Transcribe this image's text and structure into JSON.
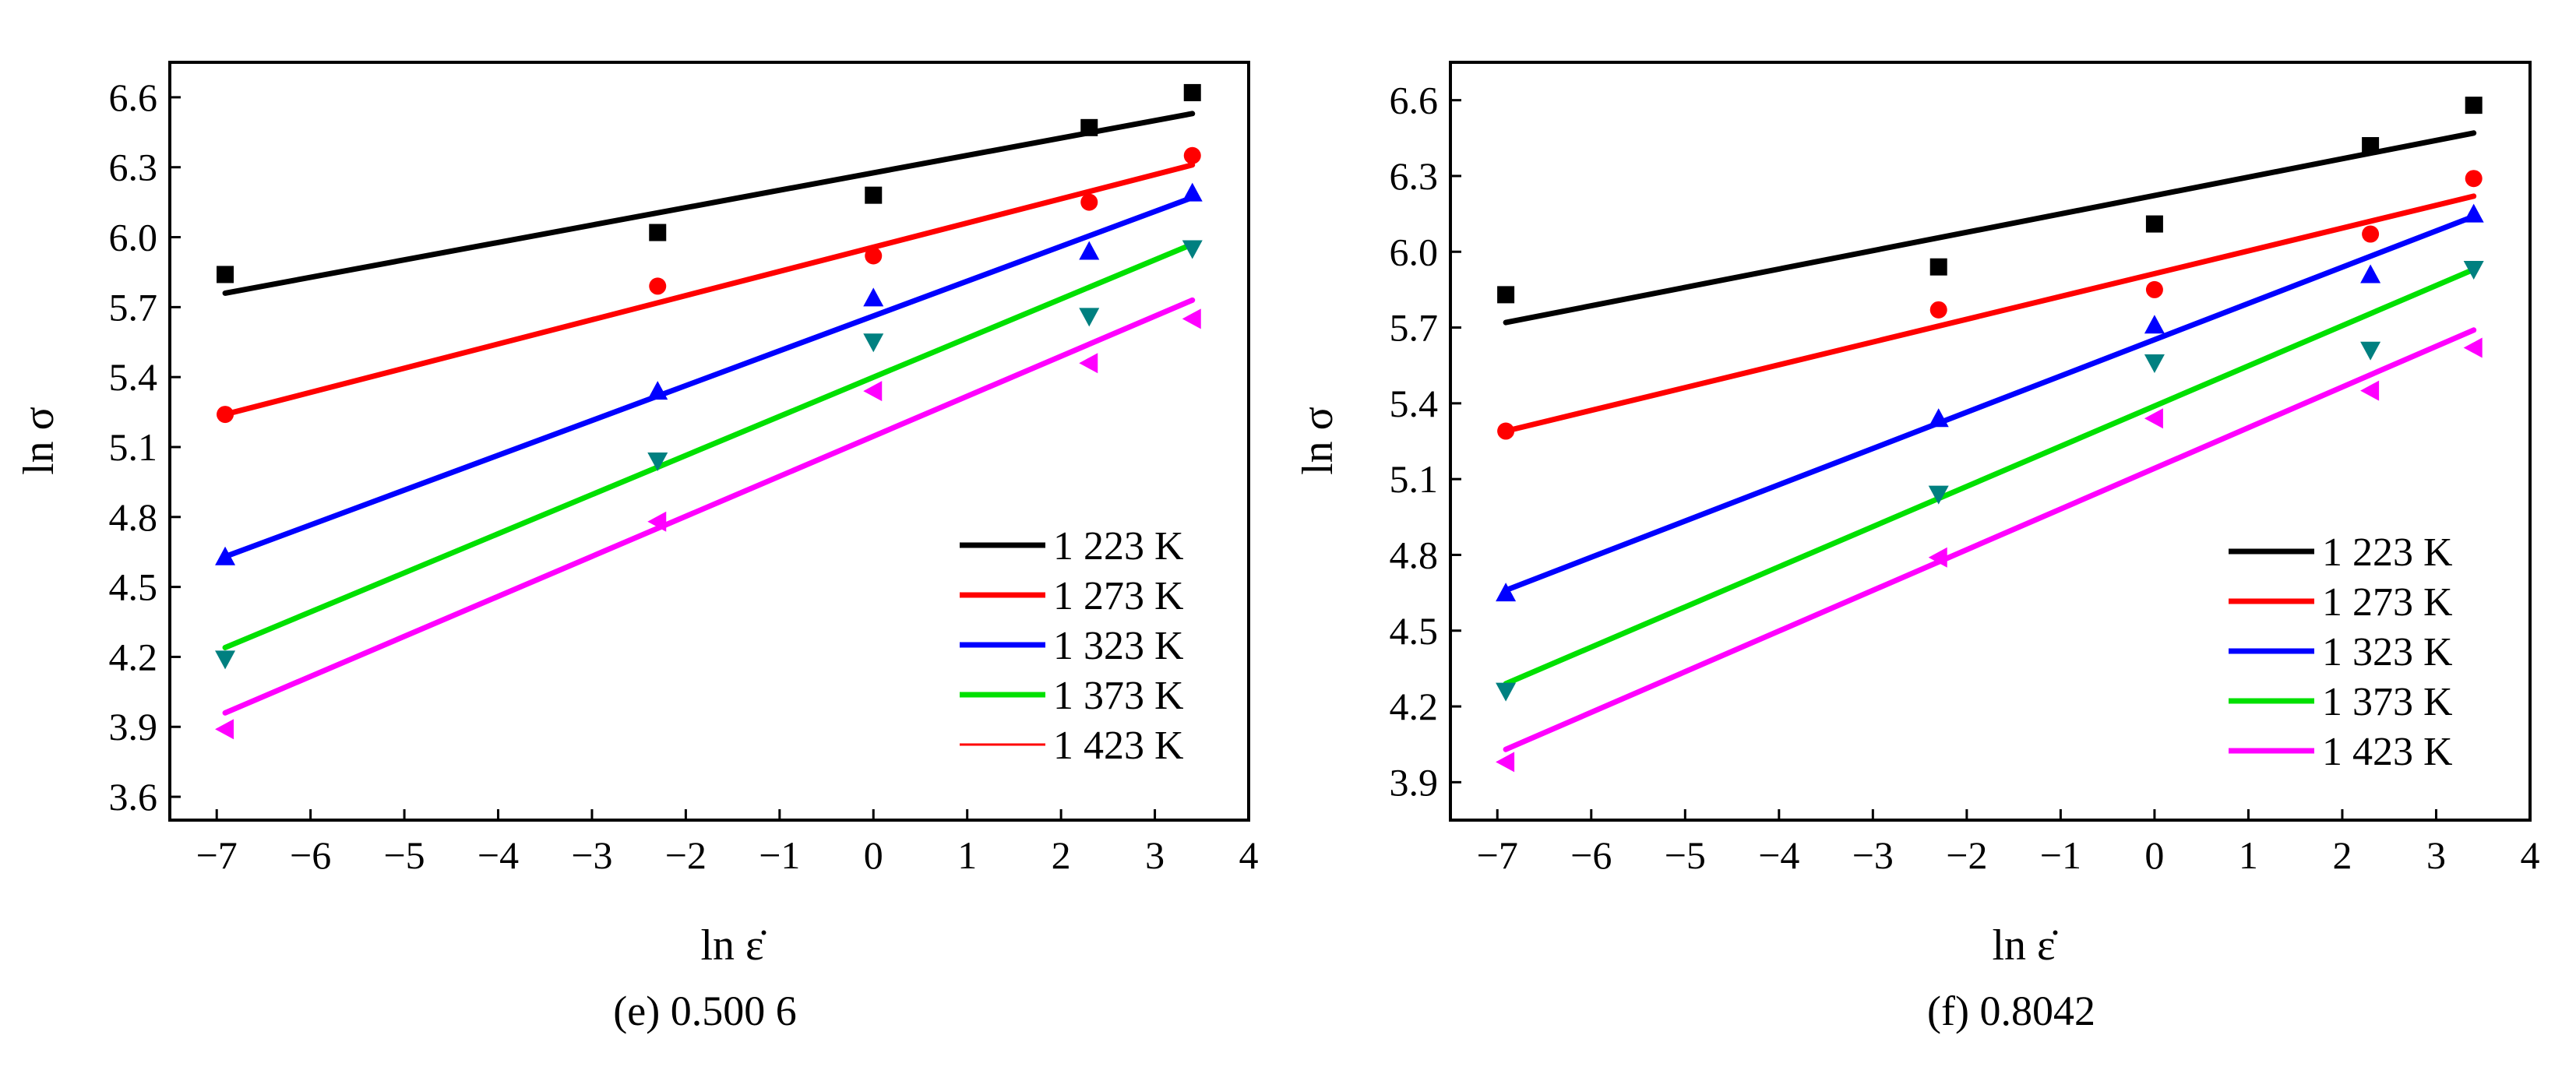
{
  "chart_data": [
    {
      "type": "scatter",
      "caption": "(e) 0.500 6",
      "xlabel": "ln ε̇",
      "ylabel": "ln σ",
      "xlim": [
        -7.5,
        4
      ],
      "ylim": [
        3.5,
        6.75
      ],
      "x_ticks": [
        -7,
        -6,
        -5,
        -4,
        -3,
        -2,
        -1,
        0,
        1,
        2,
        3,
        4
      ],
      "x_tick_labels": [
        "−7",
        "−6",
        "−5",
        "−4",
        "−3",
        "−2",
        "−1",
        "0",
        "1",
        "2",
        "3",
        "4"
      ],
      "y_ticks": [
        3.6,
        3.9,
        4.2,
        4.5,
        4.8,
        5.1,
        5.4,
        5.7,
        6.0,
        6.3,
        6.6
      ],
      "y_tick_labels": [
        "3.6",
        "3.9",
        "4.2",
        "4.5",
        "4.8",
        "5.1",
        "5.4",
        "5.7",
        "6.0",
        "6.3",
        "6.6"
      ],
      "legend_position": "bottom-right",
      "x": [
        -6.91,
        -2.3,
        0.0,
        2.3,
        3.4
      ],
      "series": [
        {
          "name": "1 223 K",
          "color": "#000000",
          "marker": "square",
          "values": [
            5.84,
            6.02,
            6.18,
            6.47,
            6.62
          ],
          "fit": [
            5.76,
            6.53
          ],
          "legend_line": "thick"
        },
        {
          "name": "1 273 K",
          "color": "#ff0000",
          "marker": "circle",
          "values": [
            5.24,
            5.79,
            5.92,
            6.15,
            6.35
          ],
          "fit": [
            5.24,
            6.31
          ],
          "legend_line": "thick"
        },
        {
          "name": "1 323 K",
          "color": "#0000ff",
          "marker": "triangle-up",
          "values": [
            4.63,
            5.34,
            5.74,
            5.94,
            6.19
          ],
          "fit": [
            4.63,
            6.17
          ],
          "legend_line": "thick"
        },
        {
          "name": "1 373 K",
          "color": "#00e000",
          "marker_color": "#008080",
          "marker": "triangle-down",
          "values": [
            4.19,
            5.04,
            5.55,
            5.66,
            5.95
          ],
          "fit": [
            4.24,
            5.97
          ],
          "legend_line": "thick"
        },
        {
          "name": "1 423 K",
          "color": "#ff00ff",
          "marker": "triangle-left",
          "values": [
            3.89,
            4.78,
            5.34,
            5.46,
            5.65
          ],
          "fit": [
            3.96,
            5.73
          ],
          "legend_line": "thin-red"
        }
      ]
    },
    {
      "type": "scatter",
      "caption": "(f) 0.8042",
      "xlabel": "ln ε̇",
      "ylabel": "ln σ",
      "xlim": [
        -7.5,
        4
      ],
      "ylim": [
        3.75,
        6.75
      ],
      "x_ticks": [
        -7,
        -6,
        -5,
        -4,
        -3,
        -2,
        -1,
        0,
        1,
        2,
        3,
        4
      ],
      "x_tick_labels": [
        "−7",
        "−6",
        "−5",
        "−4",
        "−3",
        "−2",
        "−1",
        "0",
        "1",
        "2",
        "3",
        "4"
      ],
      "y_ticks": [
        3.9,
        4.2,
        4.5,
        4.8,
        5.1,
        5.4,
        5.7,
        6.0,
        6.3,
        6.6
      ],
      "y_tick_labels": [
        "3.9",
        "4.2",
        "4.5",
        "4.8",
        "5.1",
        "5.4",
        "5.7",
        "6.0",
        "6.3",
        "6.6"
      ],
      "legend_position": "bottom-right",
      "x": [
        -6.91,
        -2.3,
        0.0,
        2.3,
        3.4
      ],
      "series": [
        {
          "name": "1 223 K",
          "color": "#000000",
          "marker": "square",
          "values": [
            5.83,
            5.94,
            6.11,
            6.42,
            6.58
          ],
          "fit": [
            5.72,
            6.47
          ],
          "legend_line": "thick"
        },
        {
          "name": "1 273 K",
          "color": "#ff0000",
          "marker": "circle",
          "values": [
            5.29,
            5.77,
            5.85,
            6.07,
            6.29
          ],
          "fit": [
            5.29,
            6.22
          ],
          "legend_line": "thick"
        },
        {
          "name": "1 323 K",
          "color": "#0000ff",
          "marker": "triangle-up",
          "values": [
            4.65,
            5.34,
            5.71,
            5.91,
            6.15
          ],
          "fit": [
            4.66,
            6.14
          ],
          "legend_line": "thick"
        },
        {
          "name": "1 373 K",
          "color": "#00e000",
          "marker_color": "#008080",
          "marker": "triangle-down",
          "values": [
            4.26,
            5.04,
            5.56,
            5.61,
            5.93
          ],
          "fit": [
            4.29,
            5.93
          ],
          "legend_line": "thick"
        },
        {
          "name": "1 423 K",
          "color": "#ff00ff",
          "marker": "triangle-left",
          "values": [
            3.98,
            4.79,
            5.34,
            5.45,
            5.62
          ],
          "fit": [
            4.03,
            5.69
          ],
          "legend_line": "thick"
        }
      ]
    }
  ]
}
